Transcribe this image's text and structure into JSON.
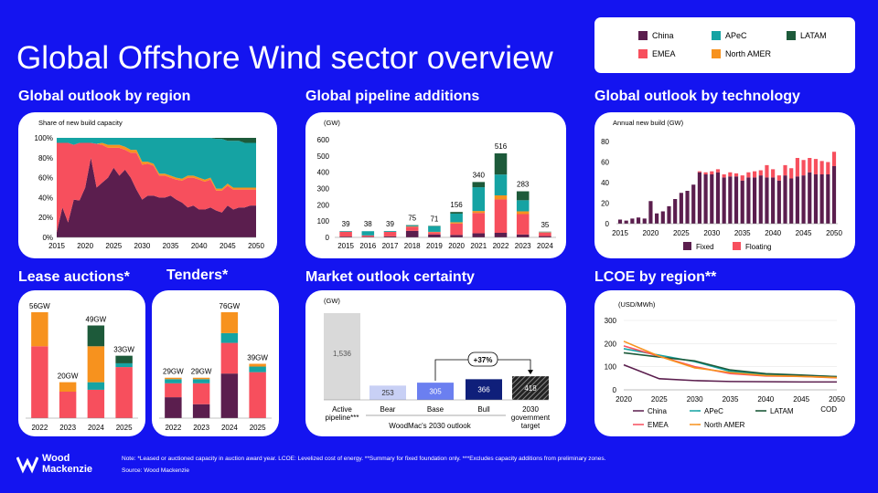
{
  "page": {
    "title": "Global Offshore Wind sector overview",
    "note": "Note: *Leased or auctioned capacity in auction award year. LCOE: Levelized cost of energy. **Summary for fixed foundation only. ***Excludes capacity additions from preliminary zones.",
    "source": "Source: Wood Mackenzie",
    "logo_line1": "Wood",
    "logo_line2": "Mackenzie"
  },
  "colors": {
    "China": "#5b1e4e",
    "APeC": "#15a3a3",
    "LATAM": "#1d5a3a",
    "EMEA": "#f74f5d",
    "North AMER": "#f7921e",
    "grey": "#d9d9d9",
    "bear": "#c8d0f5",
    "base": "#6b7ff0",
    "bull": "#0f1f7a",
    "target": "#333333"
  },
  "legend": [
    {
      "name": "China",
      "color": "#5b1e4e"
    },
    {
      "name": "APeC",
      "color": "#15a3a3"
    },
    {
      "name": "LATAM",
      "color": "#1d5a3a"
    },
    {
      "name": "EMEA",
      "color": "#f74f5d"
    },
    {
      "name": "North AMER",
      "color": "#f7921e"
    }
  ],
  "headings": {
    "region": "Global outlook by region",
    "pipeline": "Global pipeline additions",
    "technology": "Global outlook by technology",
    "lease": "Lease auctions*",
    "tenders": "Tenders*",
    "certainty": "Market outlook certainty",
    "lcoe": "LCOE by region**"
  },
  "chart_data": [
    {
      "id": "region",
      "type": "area",
      "subtitle": "Share of new build capacity",
      "x": [
        2015,
        2016,
        2017,
        2018,
        2019,
        2020,
        2021,
        2022,
        2023,
        2024,
        2025,
        2026,
        2027,
        2028,
        2029,
        2030,
        2031,
        2032,
        2033,
        2034,
        2035,
        2036,
        2037,
        2038,
        2039,
        2040,
        2041,
        2042,
        2043,
        2044,
        2045,
        2046,
        2047,
        2048,
        2049,
        2050
      ],
      "x_ticks": [
        "2015",
        "2020",
        "2025",
        "2030",
        "2035",
        "2040",
        "2045",
        "2050"
      ],
      "y_ticks": [
        "0%",
        "20%",
        "40%",
        "60%",
        "80%",
        "100%"
      ],
      "ylim": [
        0,
        100
      ],
      "series": [
        {
          "name": "China",
          "values": [
            5,
            30,
            15,
            38,
            37,
            50,
            80,
            50,
            55,
            60,
            70,
            62,
            68,
            60,
            48,
            38,
            42,
            42,
            40,
            40,
            42,
            38,
            35,
            30,
            32,
            28,
            28,
            30,
            27,
            25,
            32,
            28,
            30,
            30,
            32,
            32
          ]
        },
        {
          "name": "EMEA",
          "values": [
            90,
            65,
            80,
            55,
            58,
            45,
            15,
            44,
            38,
            30,
            20,
            28,
            20,
            25,
            37,
            35,
            32,
            30,
            22,
            22,
            18,
            20,
            22,
            30,
            28,
            30,
            28,
            28,
            20,
            22,
            20,
            20,
            18,
            18,
            16,
            16
          ]
        },
        {
          "name": "North AMER",
          "values": [
            0,
            0,
            0,
            0,
            0,
            0,
            0,
            0,
            2,
            3,
            3,
            3,
            3,
            3,
            3,
            3,
            2,
            2,
            2,
            2,
            2,
            2,
            2,
            2,
            2,
            2,
            2,
            2,
            2,
            2,
            2,
            2,
            2,
            2,
            2,
            2
          ]
        },
        {
          "name": "APeC",
          "values": [
            5,
            5,
            5,
            7,
            5,
            5,
            5,
            6,
            5,
            7,
            7,
            7,
            9,
            12,
            12,
            24,
            24,
            26,
            36,
            36,
            38,
            40,
            41,
            38,
            38,
            40,
            42,
            40,
            50,
            50,
            43,
            47,
            47,
            45,
            45,
            45
          ]
        },
        {
          "name": "LATAM",
          "values": [
            0,
            0,
            0,
            0,
            0,
            0,
            0,
            0,
            0,
            0,
            0,
            0,
            0,
            0,
            0,
            0,
            0,
            0,
            0,
            0,
            0,
            0,
            0,
            0,
            0,
            0,
            0,
            0,
            1,
            1,
            3,
            3,
            3,
            5,
            5,
            5
          ]
        }
      ]
    },
    {
      "id": "pipeline",
      "type": "bar",
      "unit": "(GW)",
      "categories": [
        "2015",
        "2016",
        "2017",
        "2018",
        "2019",
        "2020",
        "2021",
        "2022",
        "2023",
        "2024"
      ],
      "totals": [
        "39",
        "38",
        "39",
        "75",
        "71",
        "156",
        "340",
        "516",
        "283",
        "35"
      ],
      "y_ticks": [
        "0",
        "100",
        "200",
        "300",
        "400",
        "500",
        "600"
      ],
      "ylim": [
        0,
        600
      ],
      "series": [
        {
          "name": "China",
          "values": [
            5,
            4,
            6,
            40,
            18,
            15,
            25,
            28,
            18,
            8
          ]
        },
        {
          "name": "EMEA",
          "values": [
            30,
            8,
            28,
            25,
            14,
            70,
            125,
            205,
            125,
            22
          ]
        },
        {
          "name": "North AMER",
          "values": [
            0,
            0,
            0,
            2,
            2,
            8,
            12,
            25,
            17,
            2
          ]
        },
        {
          "name": "APeC",
          "values": [
            4,
            26,
            5,
            5,
            35,
            53,
            146,
            128,
            68,
            2
          ]
        },
        {
          "name": "LATAM",
          "values": [
            0,
            0,
            0,
            3,
            2,
            10,
            32,
            130,
            55,
            1
          ]
        }
      ]
    },
    {
      "id": "technology",
      "type": "bar",
      "subtitle": "Annual new build (GW)",
      "x_ticks": [
        "2015",
        "2020",
        "2025",
        "2030",
        "2035",
        "2040",
        "2045",
        "2050"
      ],
      "y_ticks": [
        "0",
        "20",
        "40",
        "60",
        "80"
      ],
      "ylim": [
        0,
        80
      ],
      "legend": [
        "Fixed",
        "Floating"
      ],
      "series": [
        {
          "name": "Fixed",
          "values": [
            4,
            3,
            5,
            6,
            5,
            22,
            10,
            12,
            17,
            24,
            30,
            32,
            38,
            50,
            48,
            48,
            50,
            45,
            46,
            46,
            42,
            45,
            45,
            47,
            45,
            45,
            42,
            47,
            44,
            46,
            47,
            50,
            48,
            48,
            48,
            56
          ]
        },
        {
          "name": "Floating",
          "values": [
            0,
            0,
            0,
            0,
            0,
            0,
            0,
            0,
            0,
            0,
            0,
            0,
            0,
            1,
            2,
            3,
            3,
            3,
            4,
            3,
            5,
            5,
            6,
            5,
            12,
            8,
            5,
            10,
            10,
            18,
            15,
            14,
            15,
            13,
            12,
            14
          ]
        }
      ]
    },
    {
      "id": "lease",
      "type": "bar",
      "categories": [
        "2022",
        "2023",
        "2024",
        "2025"
      ],
      "labels": [
        "56GW",
        "20GW",
        "49GW",
        "33GW"
      ],
      "ylim": [
        0,
        56
      ],
      "series": [
        {
          "name": "China",
          "values": [
            0,
            0,
            0,
            0
          ]
        },
        {
          "name": "EMEA",
          "values": [
            38,
            14,
            15,
            27
          ]
        },
        {
          "name": "APeC",
          "values": [
            0,
            0,
            4,
            2
          ]
        },
        {
          "name": "North AMER",
          "values": [
            18,
            5,
            19,
            0
          ]
        },
        {
          "name": "LATAM",
          "values": [
            0,
            0,
            11,
            4
          ]
        }
      ]
    },
    {
      "id": "tenders",
      "type": "bar",
      "categories": [
        "2022",
        "2023",
        "2024",
        "2025"
      ],
      "labels": [
        "29GW",
        "29GW",
        "76GW",
        "39GW"
      ],
      "ylim": [
        0,
        76
      ],
      "series": [
        {
          "name": "China",
          "values": [
            15,
            10,
            32,
            0
          ]
        },
        {
          "name": "EMEA",
          "values": [
            10,
            15,
            22,
            33
          ]
        },
        {
          "name": "APeC",
          "values": [
            3,
            3,
            7,
            4
          ]
        },
        {
          "name": "North AMER",
          "values": [
            1,
            1,
            15,
            2
          ]
        }
      ]
    },
    {
      "id": "certainty",
      "type": "bar",
      "unit": "(GW)",
      "categories": [
        "Active pipeline***",
        "Bear",
        "Base",
        "Bull",
        "2030 government target"
      ],
      "values": [
        1536,
        253,
        305,
        366,
        418
      ],
      "value_labels": [
        "1,536",
        "253",
        "305",
        "366",
        "418"
      ],
      "group_label": "WoodMac's 2030 outlook",
      "annotation": "+37%",
      "ylim": [
        0,
        1536
      ]
    },
    {
      "id": "lcoe",
      "type": "line",
      "unit": "(USD/MWh)",
      "x_label": "COD",
      "x": [
        2020,
        2025,
        2030,
        2035,
        2040,
        2045,
        2050
      ],
      "x_ticks": [
        "2020",
        "2025",
        "2030",
        "2035",
        "2040",
        "2045",
        "2050"
      ],
      "y_ticks": [
        "0",
        "100",
        "200",
        "300"
      ],
      "ylim": [
        0,
        300
      ],
      "series": [
        {
          "name": "China",
          "values": [
            108,
            48,
            40,
            36,
            35,
            34,
            34
          ]
        },
        {
          "name": "APeC",
          "values": [
            178,
            150,
            122,
            80,
            66,
            62,
            57
          ]
        },
        {
          "name": "LATAM",
          "values": [
            160,
            142,
            125,
            86,
            70,
            64,
            57
          ]
        },
        {
          "name": "EMEA",
          "values": [
            190,
            145,
            100,
            70,
            60,
            58,
            52
          ]
        },
        {
          "name": "North AMER",
          "values": [
            210,
            145,
            95,
            75,
            62,
            58,
            53
          ]
        }
      ]
    }
  ]
}
